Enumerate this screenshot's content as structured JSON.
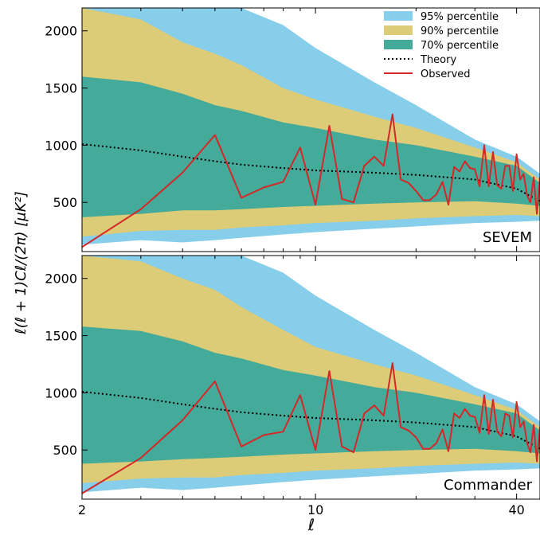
{
  "colors": {
    "band95": "#87ceeb",
    "band90": "#dccb77",
    "band70": "#44aa99",
    "theory": "#000000",
    "observed": "#d62728"
  },
  "chart_data": {
    "type": "area",
    "xscale": "log",
    "xlim": [
      2,
      47
    ],
    "ylim": [
      70,
      2200
    ],
    "xticks": [
      2,
      10,
      40
    ],
    "xtick_labels": [
      "2",
      "10",
      "40"
    ],
    "yticks": [
      500,
      1000,
      1500,
      2000
    ],
    "ytick_labels": [
      "500",
      "1000",
      "1500",
      "2000"
    ],
    "xlabel": "ℓ",
    "ylabel": "ℓ(ℓ + 1)Cℓ/(2π) [μK²]",
    "legend": {
      "location": "top-right",
      "entries": [
        {
          "label": "95% percentile",
          "kind": "patch",
          "color_key": "band95"
        },
        {
          "label": "90% percentile",
          "kind": "patch",
          "color_key": "band90"
        },
        {
          "label": "70% percentile",
          "kind": "patch",
          "color_key": "band70"
        },
        {
          "label": "Theory",
          "kind": "dotted-line",
          "color_key": "theory"
        },
        {
          "label": "Observed",
          "kind": "line",
          "color_key": "observed"
        }
      ]
    },
    "theory": {
      "x": [
        2,
        3,
        4,
        5,
        6,
        8,
        10,
        15,
        20,
        30,
        40,
        47
      ],
      "y": [
        1010,
        955,
        900,
        860,
        830,
        800,
        780,
        760,
        740,
        700,
        620,
        510
      ]
    },
    "panels": [
      {
        "label": "SEVEM",
        "bands": {
          "x": [
            2,
            3,
            4,
            5,
            6,
            8,
            10,
            15,
            20,
            30,
            40,
            47
          ],
          "p95_upper": [
            2200,
            2200,
            2200,
            2200,
            2200,
            2050,
            1850,
            1550,
            1350,
            1050,
            900,
            750
          ],
          "p90_upper": [
            2200,
            2100,
            1900,
            1800,
            1700,
            1500,
            1400,
            1250,
            1150,
            980,
            850,
            700
          ],
          "p70_upper": [
            1600,
            1550,
            1450,
            1350,
            1300,
            1200,
            1150,
            1050,
            1000,
            900,
            820,
            670
          ],
          "p70_lower": [
            370,
            400,
            430,
            430,
            440,
            460,
            470,
            490,
            500,
            510,
            490,
            470
          ],
          "p90_lower": [
            200,
            250,
            260,
            260,
            280,
            300,
            320,
            340,
            360,
            380,
            390,
            380
          ],
          "p95_lower": [
            130,
            170,
            150,
            170,
            190,
            220,
            240,
            270,
            290,
            320,
            330,
            340
          ]
        },
        "observed": {
          "x": [
            2,
            3,
            4,
            5,
            6,
            7,
            8,
            9,
            10,
            11,
            12,
            13,
            14,
            15,
            16,
            17,
            18,
            19,
            20,
            21,
            22,
            23,
            24,
            25,
            26,
            27,
            28,
            29,
            30,
            31,
            32,
            33,
            34,
            35,
            36,
            37,
            38,
            39,
            40,
            41,
            42,
            43,
            44,
            45,
            46,
            47
          ],
          "y": [
            110,
            440,
            760,
            1090,
            540,
            630,
            680,
            980,
            480,
            1170,
            530,
            500,
            820,
            900,
            820,
            1270,
            700,
            670,
            600,
            520,
            520,
            570,
            680,
            480,
            810,
            770,
            860,
            800,
            790,
            640,
            1000,
            640,
            940,
            650,
            620,
            820,
            820,
            600,
            920,
            700,
            750,
            560,
            500,
            720,
            400,
            720
          ]
        }
      },
      {
        "label": "Commander",
        "bands": {
          "x": [
            2,
            3,
            4,
            5,
            6,
            8,
            10,
            15,
            20,
            30,
            40,
            47
          ],
          "p95_upper": [
            2200,
            2200,
            2200,
            2200,
            2200,
            2050,
            1850,
            1550,
            1350,
            1050,
            900,
            750
          ],
          "p90_upper": [
            2200,
            2150,
            2000,
            1900,
            1750,
            1550,
            1400,
            1250,
            1150,
            980,
            850,
            700
          ],
          "p70_upper": [
            1580,
            1540,
            1450,
            1350,
            1300,
            1200,
            1150,
            1050,
            1000,
            900,
            820,
            670
          ],
          "p70_lower": [
            380,
            400,
            420,
            430,
            440,
            460,
            470,
            490,
            500,
            510,
            490,
            470
          ],
          "p90_lower": [
            210,
            250,
            260,
            260,
            280,
            300,
            320,
            340,
            360,
            380,
            390,
            380
          ],
          "p95_lower": [
            130,
            170,
            150,
            170,
            190,
            220,
            240,
            270,
            290,
            320,
            330,
            340
          ]
        },
        "observed": {
          "x": [
            2,
            3,
            4,
            5,
            6,
            7,
            8,
            9,
            10,
            11,
            12,
            13,
            14,
            15,
            16,
            17,
            18,
            19,
            20,
            21,
            22,
            23,
            24,
            25,
            26,
            27,
            28,
            29,
            30,
            31,
            32,
            33,
            34,
            35,
            36,
            37,
            38,
            39,
            40,
            41,
            42,
            43,
            44,
            45,
            46,
            47
          ],
          "y": [
            120,
            430,
            760,
            1100,
            530,
            630,
            660,
            980,
            500,
            1190,
            530,
            480,
            820,
            890,
            800,
            1260,
            700,
            670,
            610,
            510,
            510,
            560,
            680,
            490,
            820,
            780,
            860,
            800,
            790,
            650,
            980,
            640,
            940,
            660,
            620,
            820,
            800,
            610,
            920,
            700,
            750,
            560,
            480,
            720,
            400,
            700
          ]
        }
      }
    ]
  }
}
